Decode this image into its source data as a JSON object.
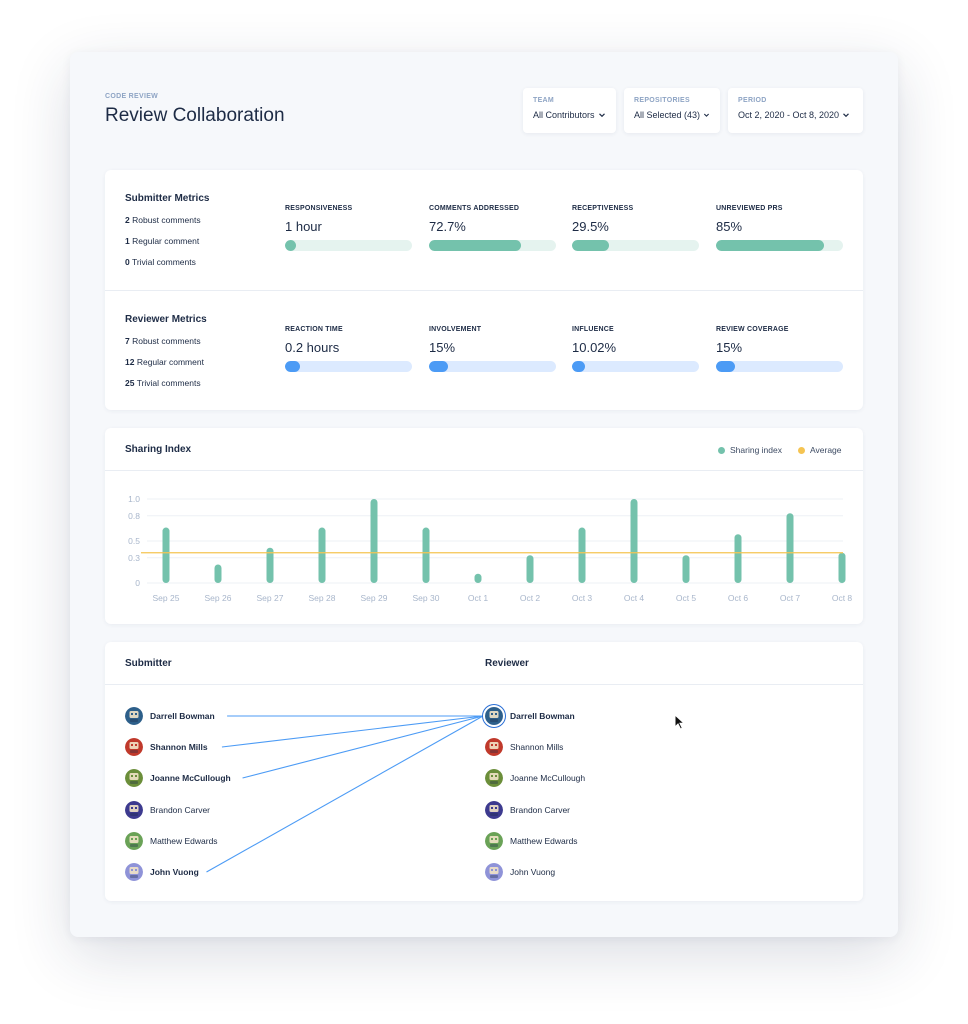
{
  "header": {
    "eyebrow": "CODE REVIEW",
    "title": "Review Collaboration"
  },
  "filters": [
    {
      "label": "TEAM",
      "value": "All Contributors"
    },
    {
      "label": "REPOSITORIES",
      "value": "All Selected (43)"
    },
    {
      "label": "PERIOD",
      "value": "Oct 2, 2020 - Oct 8, 2020"
    }
  ],
  "submitter_metrics": {
    "title": "Submitter Metrics",
    "counts": [
      {
        "num": "2",
        "label": "Robust comments"
      },
      {
        "num": "1",
        "label": "Regular comment"
      },
      {
        "num": "0",
        "label": "Trivial comments"
      }
    ],
    "items": [
      {
        "label": "RESPONSIVENESS",
        "value": "1 hour",
        "fill": 0.09
      },
      {
        "label": "COMMENTS ADDRESSED",
        "value": "72.7%",
        "fill": 0.727
      },
      {
        "label": "RECEPTIVENESS",
        "value": "29.5%",
        "fill": 0.295
      },
      {
        "label": "UNREVIEWED PRS",
        "value": "85%",
        "fill": 0.85
      }
    ]
  },
  "reviewer_metrics": {
    "title": "Reviewer Metrics",
    "counts": [
      {
        "num": "7",
        "label": "Robust comments"
      },
      {
        "num": "12",
        "label": "Regular comment"
      },
      {
        "num": "25",
        "label": "Trivial comments"
      }
    ],
    "items": [
      {
        "label": "REACTION TIME",
        "value": "0.2 hours",
        "fill": 0.12
      },
      {
        "label": "INVOLVEMENT",
        "value": "15%",
        "fill": 0.15
      },
      {
        "label": "INFLUENCE",
        "value": "10.02%",
        "fill": 0.1002
      },
      {
        "label": "REVIEW COVERAGE",
        "value": "15%",
        "fill": 0.15
      }
    ]
  },
  "sharing": {
    "title": "Sharing Index",
    "legend": [
      {
        "label": "Sharing index",
        "color": "#74c2ac"
      },
      {
        "label": "Average",
        "color": "#f5c452"
      }
    ]
  },
  "chart_data": {
    "type": "bar",
    "title": "Sharing Index",
    "categories": [
      "Sep 25",
      "Sep 26",
      "Sep 27",
      "Sep 28",
      "Sep 29",
      "Sep 30",
      "Oct 1",
      "Oct 2",
      "Oct 3",
      "Oct 4",
      "Oct 5",
      "Oct 6",
      "Oct 7",
      "Oct 8"
    ],
    "series": [
      {
        "name": "Sharing index",
        "color": "#74c2ac",
        "values": [
          0.66,
          0.22,
          0.42,
          0.66,
          1.0,
          0.66,
          0.11,
          0.33,
          0.66,
          1.0,
          0.33,
          0.58,
          0.83,
          0.36
        ]
      },
      {
        "name": "Average",
        "color": "#f5c452",
        "values": [
          0.36,
          0.36,
          0.36,
          0.36,
          0.36,
          0.36,
          0.36,
          0.36,
          0.36,
          0.36,
          0.36,
          0.36,
          0.36,
          0.36
        ]
      }
    ],
    "ylim": [
      0,
      1.0
    ],
    "yticks": [
      "0",
      "0.3",
      "0.5",
      "0.8",
      "1.0"
    ],
    "grid": true,
    "legend_position": "top-right"
  },
  "collaboration": {
    "submitter_title": "Submitter",
    "reviewer_title": "Reviewer",
    "submitters": [
      {
        "name": "Darrell Bowman",
        "bold": true,
        "avatar": "robot-avatar-navy",
        "color": "#2d5f8a"
      },
      {
        "name": "Shannon Mills",
        "bold": true,
        "avatar": "robot-avatar-red",
        "color": "#c0392b"
      },
      {
        "name": "Joanne McCullough",
        "bold": true,
        "avatar": "robot-avatar-green",
        "color": "#6b8e3a"
      },
      {
        "name": "Brandon Carver",
        "bold": false,
        "avatar": "robot-avatar-purple",
        "color": "#3d3a8f"
      },
      {
        "name": "Matthew Edwards",
        "bold": false,
        "avatar": "robot-avatar-olive",
        "color": "#6aa257"
      },
      {
        "name": "John Vuong",
        "bold": true,
        "avatar": "robot-avatar-lavender",
        "color": "#8f93d8"
      }
    ],
    "reviewers": [
      {
        "name": "Darrell Bowman",
        "bold": true,
        "avatar": "robot-avatar-navy",
        "color": "#2d5f8a"
      },
      {
        "name": "Shannon Mills",
        "bold": false,
        "avatar": "robot-avatar-red",
        "color": "#c0392b"
      },
      {
        "name": "Joanne McCullough",
        "bold": false,
        "avatar": "robot-avatar-green",
        "color": "#6b8e3a"
      },
      {
        "name": "Brandon Carver",
        "bold": false,
        "avatar": "robot-avatar-purple",
        "color": "#3d3a8f"
      },
      {
        "name": "Matthew Edwards",
        "bold": false,
        "avatar": "robot-avatar-olive",
        "color": "#6aa257"
      },
      {
        "name": "John Vuong",
        "bold": false,
        "avatar": "robot-avatar-lavender",
        "color": "#8f93d8"
      }
    ],
    "links_to_reviewer": "Darrell Bowman",
    "linked_submitters": [
      "Darrell Bowman",
      "Shannon Mills",
      "Joanne McCullough",
      "John Vuong"
    ],
    "link_color": "#4c9bf5"
  }
}
